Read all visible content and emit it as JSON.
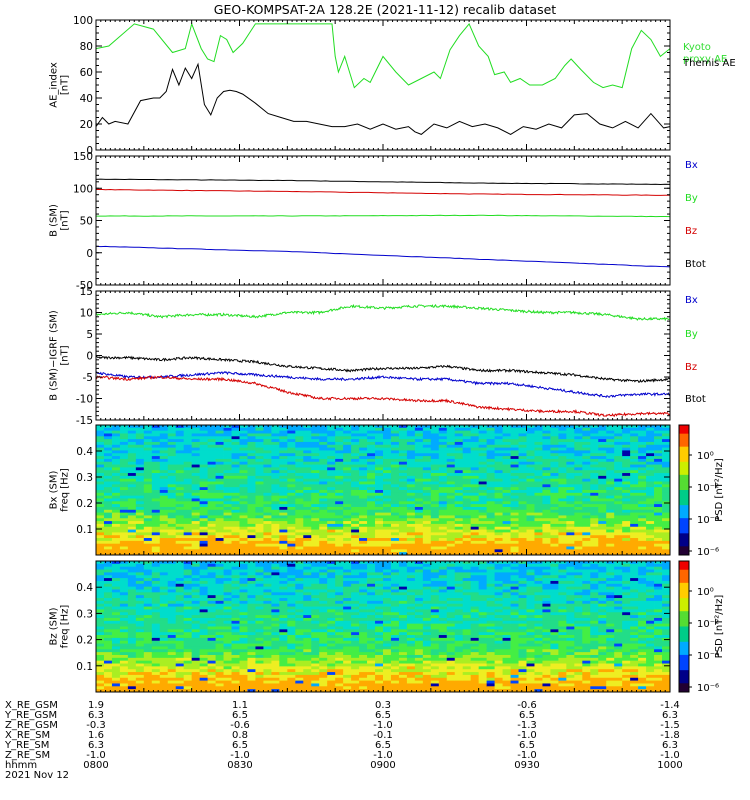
{
  "title": "GEO-KOMPSAT-2A 128.2E (2021-11-12) recalib dataset",
  "colors": {
    "black": "#000000",
    "red": "#d40000",
    "green": "#22dd22",
    "blue": "#0000cc",
    "kyoto": "#33dd33"
  },
  "chart_data": [
    {
      "type": "line",
      "ylabel": "AE_index\n[nT]",
      "ylim": [
        0,
        100
      ],
      "yticks": [
        "0",
        "20",
        "40",
        "60",
        "80",
        "100"
      ],
      "legend": [
        "Kyoto\nproxy AE",
        "Themis AE"
      ],
      "series": [
        {
          "name": "Kyoto proxy AE",
          "color": "green",
          "x": [
            0,
            2,
            6,
            9,
            12,
            14,
            15,
            16.5,
            17.5,
            18.5,
            19.5,
            20.5,
            21.5,
            23,
            25,
            27,
            29,
            31,
            33,
            35,
            37,
            37.5,
            38,
            39,
            40.5,
            42,
            43,
            45,
            47,
            49,
            51,
            53,
            54,
            55.5,
            57,
            58.5,
            60,
            61.5,
            62.5,
            64,
            65,
            66.5,
            68,
            70,
            72,
            73.5,
            74.5,
            76,
            78,
            79.5,
            81,
            82.5,
            84,
            85.5,
            87,
            88.5,
            90
          ],
          "y": [
            78,
            80,
            97,
            93,
            75,
            78,
            97,
            78,
            70,
            68,
            88,
            85,
            75,
            82,
            97,
            97,
            97,
            97,
            97,
            97,
            97,
            72,
            60,
            72,
            48,
            55,
            52,
            72,
            60,
            50,
            55,
            60,
            55,
            77,
            88,
            97,
            80,
            72,
            58,
            60,
            52,
            55,
            50,
            50,
            55,
            65,
            70,
            62,
            52,
            48,
            50,
            48,
            78,
            92,
            85,
            72,
            78
          ]
        },
        {
          "name": "Themis AE",
          "color": "black",
          "x": [
            0,
            1,
            2,
            3,
            5,
            7,
            9,
            10,
            11,
            12,
            13,
            14,
            15,
            16,
            17,
            18,
            19,
            20,
            21,
            22,
            23,
            25,
            27,
            29,
            31,
            33,
            35,
            37,
            39,
            41,
            43,
            45,
            47,
            49,
            50,
            51,
            53,
            55,
            57,
            59,
            61,
            63,
            65,
            67,
            69,
            71,
            73,
            75,
            77,
            79,
            81,
            83,
            85,
            87,
            89,
            90
          ],
          "y": [
            18,
            25,
            20,
            22,
            20,
            38,
            40,
            40,
            45,
            62,
            50,
            63,
            55,
            66,
            35,
            27,
            40,
            45,
            46,
            45,
            43,
            36,
            28,
            25,
            22,
            22,
            20,
            18,
            18,
            20,
            16,
            20,
            16,
            18,
            14,
            12,
            20,
            17,
            22,
            18,
            20,
            17,
            12,
            18,
            16,
            20,
            17,
            27,
            28,
            20,
            17,
            22,
            17,
            28,
            17,
            18
          ]
        }
      ]
    },
    {
      "type": "line",
      "ylabel": "B (SM)\n[nT]",
      "ylim": [
        -50,
        150
      ],
      "yticks": [
        "-50",
        "0",
        "50",
        "100",
        "150"
      ],
      "legend": [
        "Bx",
        "By",
        "Bz",
        "Btot"
      ],
      "series": [
        {
          "name": "Btot",
          "color": "black",
          "x": [
            0,
            30,
            60,
            90
          ],
          "y": [
            114,
            112,
            108,
            106
          ]
        },
        {
          "name": "Bx",
          "color": "red",
          "x": [
            0,
            30,
            60,
            90
          ],
          "y": [
            98,
            95,
            91,
            89
          ]
        },
        {
          "name": "By",
          "color": "green",
          "x": [
            0,
            30,
            60,
            90
          ],
          "y": [
            57,
            57,
            58,
            56
          ]
        },
        {
          "name": "Bz",
          "color": "blue",
          "x": [
            0,
            30,
            60,
            90
          ],
          "y": [
            10,
            2,
            -10,
            -22
          ]
        }
      ]
    },
    {
      "type": "line",
      "ylabel": "B (SM)−IGRF (SM)\n[nT]",
      "ylim": [
        -15,
        15
      ],
      "yticks": [
        "-15",
        "-10",
        "-5",
        "0",
        "5",
        "10",
        "15"
      ],
      "legend": [
        "Bx",
        "By",
        "Bz",
        "Btot"
      ],
      "series": [
        {
          "name": "By",
          "color": "green",
          "x": [
            0,
            5,
            10,
            15,
            20,
            25,
            30,
            35,
            40,
            45,
            50,
            55,
            60,
            65,
            70,
            75,
            80,
            85,
            90
          ],
          "y": [
            9.5,
            10,
            9.0,
            9.5,
            9.5,
            9.0,
            10.0,
            10.0,
            11.5,
            11.0,
            11.5,
            11.5,
            11.0,
            10.5,
            10.0,
            10.0,
            9.5,
            8.5,
            8.5
          ]
        },
        {
          "name": "Btot",
          "color": "black",
          "x": [
            0,
            5,
            10,
            15,
            20,
            25,
            30,
            35,
            40,
            45,
            50,
            55,
            60,
            65,
            70,
            75,
            80,
            85,
            90
          ],
          "y": [
            -0.5,
            -0.5,
            -1.0,
            -0.5,
            -1.0,
            -1.5,
            -2.5,
            -3.0,
            -3.5,
            -3.0,
            -3.0,
            -2.5,
            -3.5,
            -3.5,
            -4.0,
            -4.5,
            -5.5,
            -6.0,
            -5.5
          ]
        },
        {
          "name": "Bx",
          "color": "blue",
          "x": [
            0,
            5,
            10,
            15,
            20,
            25,
            30,
            35,
            40,
            45,
            50,
            55,
            60,
            65,
            70,
            75,
            80,
            85,
            90
          ],
          "y": [
            -4.0,
            -5.0,
            -5.0,
            -4.5,
            -4.0,
            -4.5,
            -5.0,
            -5.5,
            -5.5,
            -5.0,
            -5.5,
            -5.5,
            -6.5,
            -6.5,
            -7.5,
            -8.5,
            -9.5,
            -9.0,
            -9.0
          ]
        },
        {
          "name": "Bz",
          "color": "red",
          "x": [
            0,
            5,
            10,
            15,
            20,
            25,
            30,
            35,
            40,
            45,
            50,
            55,
            60,
            65,
            70,
            75,
            80,
            85,
            90
          ],
          "y": [
            -5.0,
            -5.5,
            -5.0,
            -5.5,
            -5.5,
            -6.5,
            -8.5,
            -10.0,
            -10.0,
            -10.0,
            -10.5,
            -10.5,
            -12.0,
            -12.5,
            -13.0,
            -13.0,
            -14.0,
            -13.5,
            -13.5
          ]
        }
      ]
    },
    {
      "type": "heatmap",
      "ylabel": "Bx (SM)\nfreq [Hz]",
      "ylim": [
        0,
        0.5
      ],
      "yticks": [
        "0.1",
        "0.2",
        "0.3",
        "0.4"
      ],
      "colorbar_label": "PSD [nT²/Hz]",
      "colorbar_ticks": [
        "10⁰",
        "10⁻²",
        "10⁻⁴",
        "10⁻⁶"
      ]
    },
    {
      "type": "heatmap",
      "ylabel": "Bz (SM)\nfreq [Hz]",
      "ylim": [
        0,
        0.5
      ],
      "yticks": [
        "0.1",
        "0.2",
        "0.3",
        "0.4"
      ],
      "colorbar_label": "PSD [nT²/Hz]",
      "colorbar_ticks": [
        "10⁰",
        "10⁻²",
        "10⁻⁴",
        "10⁻⁶"
      ]
    }
  ],
  "ephemeris": {
    "labels": [
      "X_RE_GSM",
      "Y_RE_GSM",
      "Z_RE_GSM",
      "X_RE_SM",
      "Y_RE_SM",
      "Z_RE_SM",
      "hhmm",
      "2021 Nov 12"
    ],
    "columns": [
      [
        "1.9",
        "6.3",
        "-0.3",
        "1.6",
        "6.3",
        "-1.0",
        "0800"
      ],
      [
        "1.1",
        "6.5",
        "-0.6",
        "0.8",
        "6.5",
        "-1.0",
        "0830"
      ],
      [
        "0.3",
        "6.5",
        "-1.0",
        "-0.1",
        "6.5",
        "-1.0",
        "0900"
      ],
      [
        "-0.6",
        "6.5",
        "-1.3",
        "-1.0",
        "6.5",
        "-1.0",
        "0930"
      ],
      [
        "-1.4",
        "6.3",
        "-1.5",
        "-1.8",
        "6.3",
        "-1.0",
        "1000"
      ]
    ]
  }
}
